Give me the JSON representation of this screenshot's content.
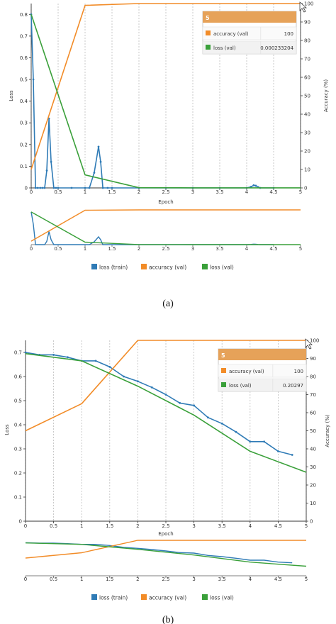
{
  "colors": {
    "loss_train": "#2f7bb6",
    "accuracy_val": "#f28c28",
    "loss_val": "#3aa03a",
    "grid": "#bdbdbd",
    "tooltip_header": "#e6a259"
  },
  "legend": [
    {
      "key": "loss_train",
      "label": "loss (train)"
    },
    {
      "key": "accuracy_val",
      "label": "accuracy (val)"
    },
    {
      "key": "loss_val",
      "label": "loss (val)"
    }
  ],
  "panels": [
    {
      "caption": "(a)",
      "tooltip": {
        "title": "5",
        "rows": [
          {
            "key": "accuracy_val",
            "label": "accuracy (val)",
            "value": "100"
          },
          {
            "key": "loss_val",
            "label": "loss (val)",
            "value": "0.000233204"
          }
        ]
      }
    },
    {
      "caption": "(b)",
      "tooltip": {
        "title": "5",
        "rows": [
          {
            "key": "accuracy_val",
            "label": "accuracy (val)",
            "value": "100"
          },
          {
            "key": "loss_val",
            "label": "loss (val)",
            "value": "0.20297"
          }
        ]
      }
    }
  ],
  "chart_data": [
    {
      "type": "line",
      "xlabel": "Epoch",
      "ylabel_left": "Loss",
      "ylabel_right": "Accuracy (%)",
      "xlim": [
        0,
        5
      ],
      "ylim_left": [
        0,
        0.85
      ],
      "ylim_right": [
        0,
        100
      ],
      "xticks": [
        "0",
        "0.5",
        "1",
        "1.5",
        "2",
        "2.5",
        "3",
        "3.5",
        "4",
        "4.5",
        "5"
      ],
      "yticks_left": [
        "0",
        "0.1",
        "0.2",
        "0.3",
        "0.4",
        "0.5",
        "0.6",
        "0.7",
        "0.8"
      ],
      "yticks_right": [
        "0",
        "10",
        "20",
        "30",
        "40",
        "50",
        "60",
        "70",
        "80",
        "90",
        "100"
      ],
      "grid": "vertical dashed",
      "series": [
        {
          "key": "loss_train",
          "name": "loss (train)",
          "axis": "left",
          "x": [
            0,
            0.04,
            0.08,
            0.12,
            0.17,
            0.21,
            0.25,
            0.29,
            0.33,
            0.37,
            0.42,
            0.46,
            0.5,
            0.75,
            1.0,
            1.08,
            1.17,
            1.25,
            1.29,
            1.33,
            1.42,
            1.5,
            2.0,
            2.5,
            3.0,
            3.5,
            4.0,
            4.08,
            4.13,
            4.17,
            4.21,
            4.25,
            4.5
          ],
          "values": [
            0.8,
            0.5,
            0.0,
            0.0,
            0.0,
            0.0,
            0.0,
            0.08,
            0.32,
            0.12,
            0.0,
            0.0,
            0.0,
            0.0,
            0.0,
            0.0,
            0.07,
            0.19,
            0.12,
            0.0,
            0.0,
            0.0,
            0.0,
            0.0,
            0.0,
            0.0,
            0.0,
            0.005,
            0.012,
            0.01,
            0.004,
            0.0,
            0.0
          ]
        },
        {
          "key": "accuracy_val",
          "name": "accuracy (val)",
          "axis": "right",
          "x": [
            0,
            1,
            2,
            3,
            4,
            5
          ],
          "values": [
            10,
            99,
            100,
            100,
            100,
            100
          ]
        },
        {
          "key": "loss_val",
          "name": "loss (val)",
          "axis": "left",
          "x": [
            0,
            1,
            2,
            3,
            4,
            5
          ],
          "values": [
            0.8,
            0.06,
            0.001,
            0.0003,
            0.0002,
            0.000233204
          ]
        }
      ]
    },
    {
      "type": "line",
      "xlabel": "Epoch",
      "ylabel_left": "Loss",
      "ylabel_right": "Accuracy (%)",
      "xlim": [
        0,
        5
      ],
      "ylim_left": [
        0,
        0.75
      ],
      "ylim_right": [
        0,
        100
      ],
      "xticks": [
        "0",
        "0.5",
        "1",
        "1.5",
        "2",
        "2.5",
        "3",
        "3.5",
        "4",
        "4.5",
        "5"
      ],
      "yticks_left": [
        "0",
        "0.1",
        "0.2",
        "0.3",
        "0.4",
        "0.5",
        "0.6",
        "0.7"
      ],
      "yticks_right": [
        "0",
        "10",
        "20",
        "30",
        "40",
        "50",
        "60",
        "70",
        "80",
        "90",
        "100"
      ],
      "grid": "vertical dashed",
      "series": [
        {
          "key": "loss_train",
          "name": "loss (train)",
          "axis": "left",
          "x": [
            0,
            0.25,
            0.5,
            0.75,
            1.0,
            1.25,
            1.5,
            1.75,
            2.0,
            2.25,
            2.5,
            2.75,
            3.0,
            3.25,
            3.5,
            3.75,
            4.0,
            4.25,
            4.5,
            4.75
          ],
          "values": [
            0.7,
            0.69,
            0.69,
            0.68,
            0.665,
            0.665,
            0.64,
            0.6,
            0.58,
            0.555,
            0.525,
            0.49,
            0.48,
            0.43,
            0.405,
            0.37,
            0.33,
            0.33,
            0.29,
            0.275
          ]
        },
        {
          "key": "accuracy_val",
          "name": "accuracy (val)",
          "axis": "right",
          "x": [
            0,
            1,
            2,
            3,
            4,
            5
          ],
          "values": [
            50,
            65,
            100,
            100,
            100,
            100
          ]
        },
        {
          "key": "loss_val",
          "name": "loss (val)",
          "axis": "left",
          "x": [
            0,
            1,
            2,
            3,
            4,
            5
          ],
          "values": [
            0.695,
            0.665,
            0.56,
            0.44,
            0.29,
            0.20297
          ]
        }
      ]
    }
  ]
}
